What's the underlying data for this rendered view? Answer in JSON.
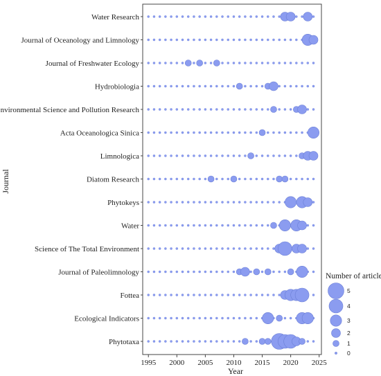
{
  "colors": {
    "bubble": "#8b9cf0",
    "bubble_stroke": "#6b7fd6",
    "frame": "#444444"
  },
  "chart_data": {
    "type": "scatter",
    "xlabel": "Year",
    "ylabel": "Journal",
    "xlim": [
      1994,
      2025.4
    ],
    "xticks": [
      1995,
      2000,
      2005,
      2010,
      2015,
      2020,
      2025
    ],
    "grid": false,
    "legend_title": "Number of articles",
    "legend_placement": "right",
    "legend_values": [
      5,
      4,
      3,
      2,
      1,
      0
    ],
    "background_years": [
      1995,
      2024
    ],
    "journals": [
      "Water Research",
      "Journal of Oceanology and Limnology",
      "Journal of Freshwater Ecology",
      "Hydrobiologia",
      "Environmental Science and Pollution Research",
      "Acta Oceanologica Sinica",
      "Limnologica",
      "Diatom Research",
      "Phytokeys",
      "Water",
      "Science of The Total Environment",
      "Journal of Paleolimnology",
      "Fottea",
      "Ecological Indicators",
      "Phytotaxa"
    ],
    "points": [
      {
        "journal": "Water Research",
        "year": 2019,
        "count": 2
      },
      {
        "journal": "Water Research",
        "year": 2020,
        "count": 2
      },
      {
        "journal": "Water Research",
        "year": 2023,
        "count": 2
      },
      {
        "journal": "Journal of Oceanology and Limnology",
        "year": 2023,
        "count": 3
      },
      {
        "journal": "Journal of Oceanology and Limnology",
        "year": 2024,
        "count": 2
      },
      {
        "journal": "Journal of Freshwater Ecology",
        "year": 2002,
        "count": 1
      },
      {
        "journal": "Journal of Freshwater Ecology",
        "year": 2004,
        "count": 1
      },
      {
        "journal": "Journal of Freshwater Ecology",
        "year": 2007,
        "count": 1
      },
      {
        "journal": "Hydrobiologia",
        "year": 2011,
        "count": 1
      },
      {
        "journal": "Hydrobiologia",
        "year": 2016,
        "count": 1
      },
      {
        "journal": "Hydrobiologia",
        "year": 2017,
        "count": 2
      },
      {
        "journal": "Environmental Science and Pollution Research",
        "year": 2017,
        "count": 1
      },
      {
        "journal": "Environmental Science and Pollution Research",
        "year": 2021,
        "count": 1
      },
      {
        "journal": "Environmental Science and Pollution Research",
        "year": 2022,
        "count": 2
      },
      {
        "journal": "Acta Oceanologica Sinica",
        "year": 2015,
        "count": 1
      },
      {
        "journal": "Acta Oceanologica Sinica",
        "year": 2024,
        "count": 3
      },
      {
        "journal": "Limnologica",
        "year": 2013,
        "count": 1
      },
      {
        "journal": "Limnologica",
        "year": 2022,
        "count": 1
      },
      {
        "journal": "Limnologica",
        "year": 2023,
        "count": 2
      },
      {
        "journal": "Limnologica",
        "year": 2024,
        "count": 2
      },
      {
        "journal": "Diatom Research",
        "year": 2006,
        "count": 1
      },
      {
        "journal": "Diatom Research",
        "year": 2010,
        "count": 1
      },
      {
        "journal": "Diatom Research",
        "year": 2018,
        "count": 1
      },
      {
        "journal": "Diatom Research",
        "year": 2019,
        "count": 1
      },
      {
        "journal": "Phytokeys",
        "year": 2020,
        "count": 3
      },
      {
        "journal": "Phytokeys",
        "year": 2022,
        "count": 3
      },
      {
        "journal": "Phytokeys",
        "year": 2023,
        "count": 2
      },
      {
        "journal": "Water",
        "year": 2017,
        "count": 1
      },
      {
        "journal": "Water",
        "year": 2019,
        "count": 3
      },
      {
        "journal": "Water",
        "year": 2021,
        "count": 3
      },
      {
        "journal": "Water",
        "year": 2022,
        "count": 2
      },
      {
        "journal": "Science of The Total Environment",
        "year": 2018,
        "count": 2
      },
      {
        "journal": "Science of The Total Environment",
        "year": 2019,
        "count": 4
      },
      {
        "journal": "Science of The Total Environment",
        "year": 2021,
        "count": 2
      },
      {
        "journal": "Science of The Total Environment",
        "year": 2022,
        "count": 2
      },
      {
        "journal": "Journal of Paleolimnology",
        "year": 2011,
        "count": 1
      },
      {
        "journal": "Journal of Paleolimnology",
        "year": 2012,
        "count": 2
      },
      {
        "journal": "Journal of Paleolimnology",
        "year": 2014,
        "count": 1
      },
      {
        "journal": "Journal of Paleolimnology",
        "year": 2016,
        "count": 1
      },
      {
        "journal": "Journal of Paleolimnology",
        "year": 2020,
        "count": 1
      },
      {
        "journal": "Journal of Paleolimnology",
        "year": 2022,
        "count": 3
      },
      {
        "journal": "Fottea",
        "year": 2019,
        "count": 2
      },
      {
        "journal": "Fottea",
        "year": 2020,
        "count": 3
      },
      {
        "journal": "Fottea",
        "year": 2021,
        "count": 3
      },
      {
        "journal": "Fottea",
        "year": 2022,
        "count": 4
      },
      {
        "journal": "Ecological Indicators",
        "year": 2016,
        "count": 3
      },
      {
        "journal": "Ecological Indicators",
        "year": 2018,
        "count": 1
      },
      {
        "journal": "Ecological Indicators",
        "year": 2022,
        "count": 3
      },
      {
        "journal": "Ecological Indicators",
        "year": 2023,
        "count": 3
      },
      {
        "journal": "Phytotaxa",
        "year": 2012,
        "count": 1
      },
      {
        "journal": "Phytotaxa",
        "year": 2015,
        "count": 1
      },
      {
        "journal": "Phytotaxa",
        "year": 2016,
        "count": 1
      },
      {
        "journal": "Phytotaxa",
        "year": 2018,
        "count": 5
      },
      {
        "journal": "Phytotaxa",
        "year": 2019,
        "count": 4
      },
      {
        "journal": "Phytotaxa",
        "year": 2020,
        "count": 4
      },
      {
        "journal": "Phytotaxa",
        "year": 2021,
        "count": 2
      },
      {
        "journal": "Phytotaxa",
        "year": 2022,
        "count": 1
      }
    ]
  }
}
